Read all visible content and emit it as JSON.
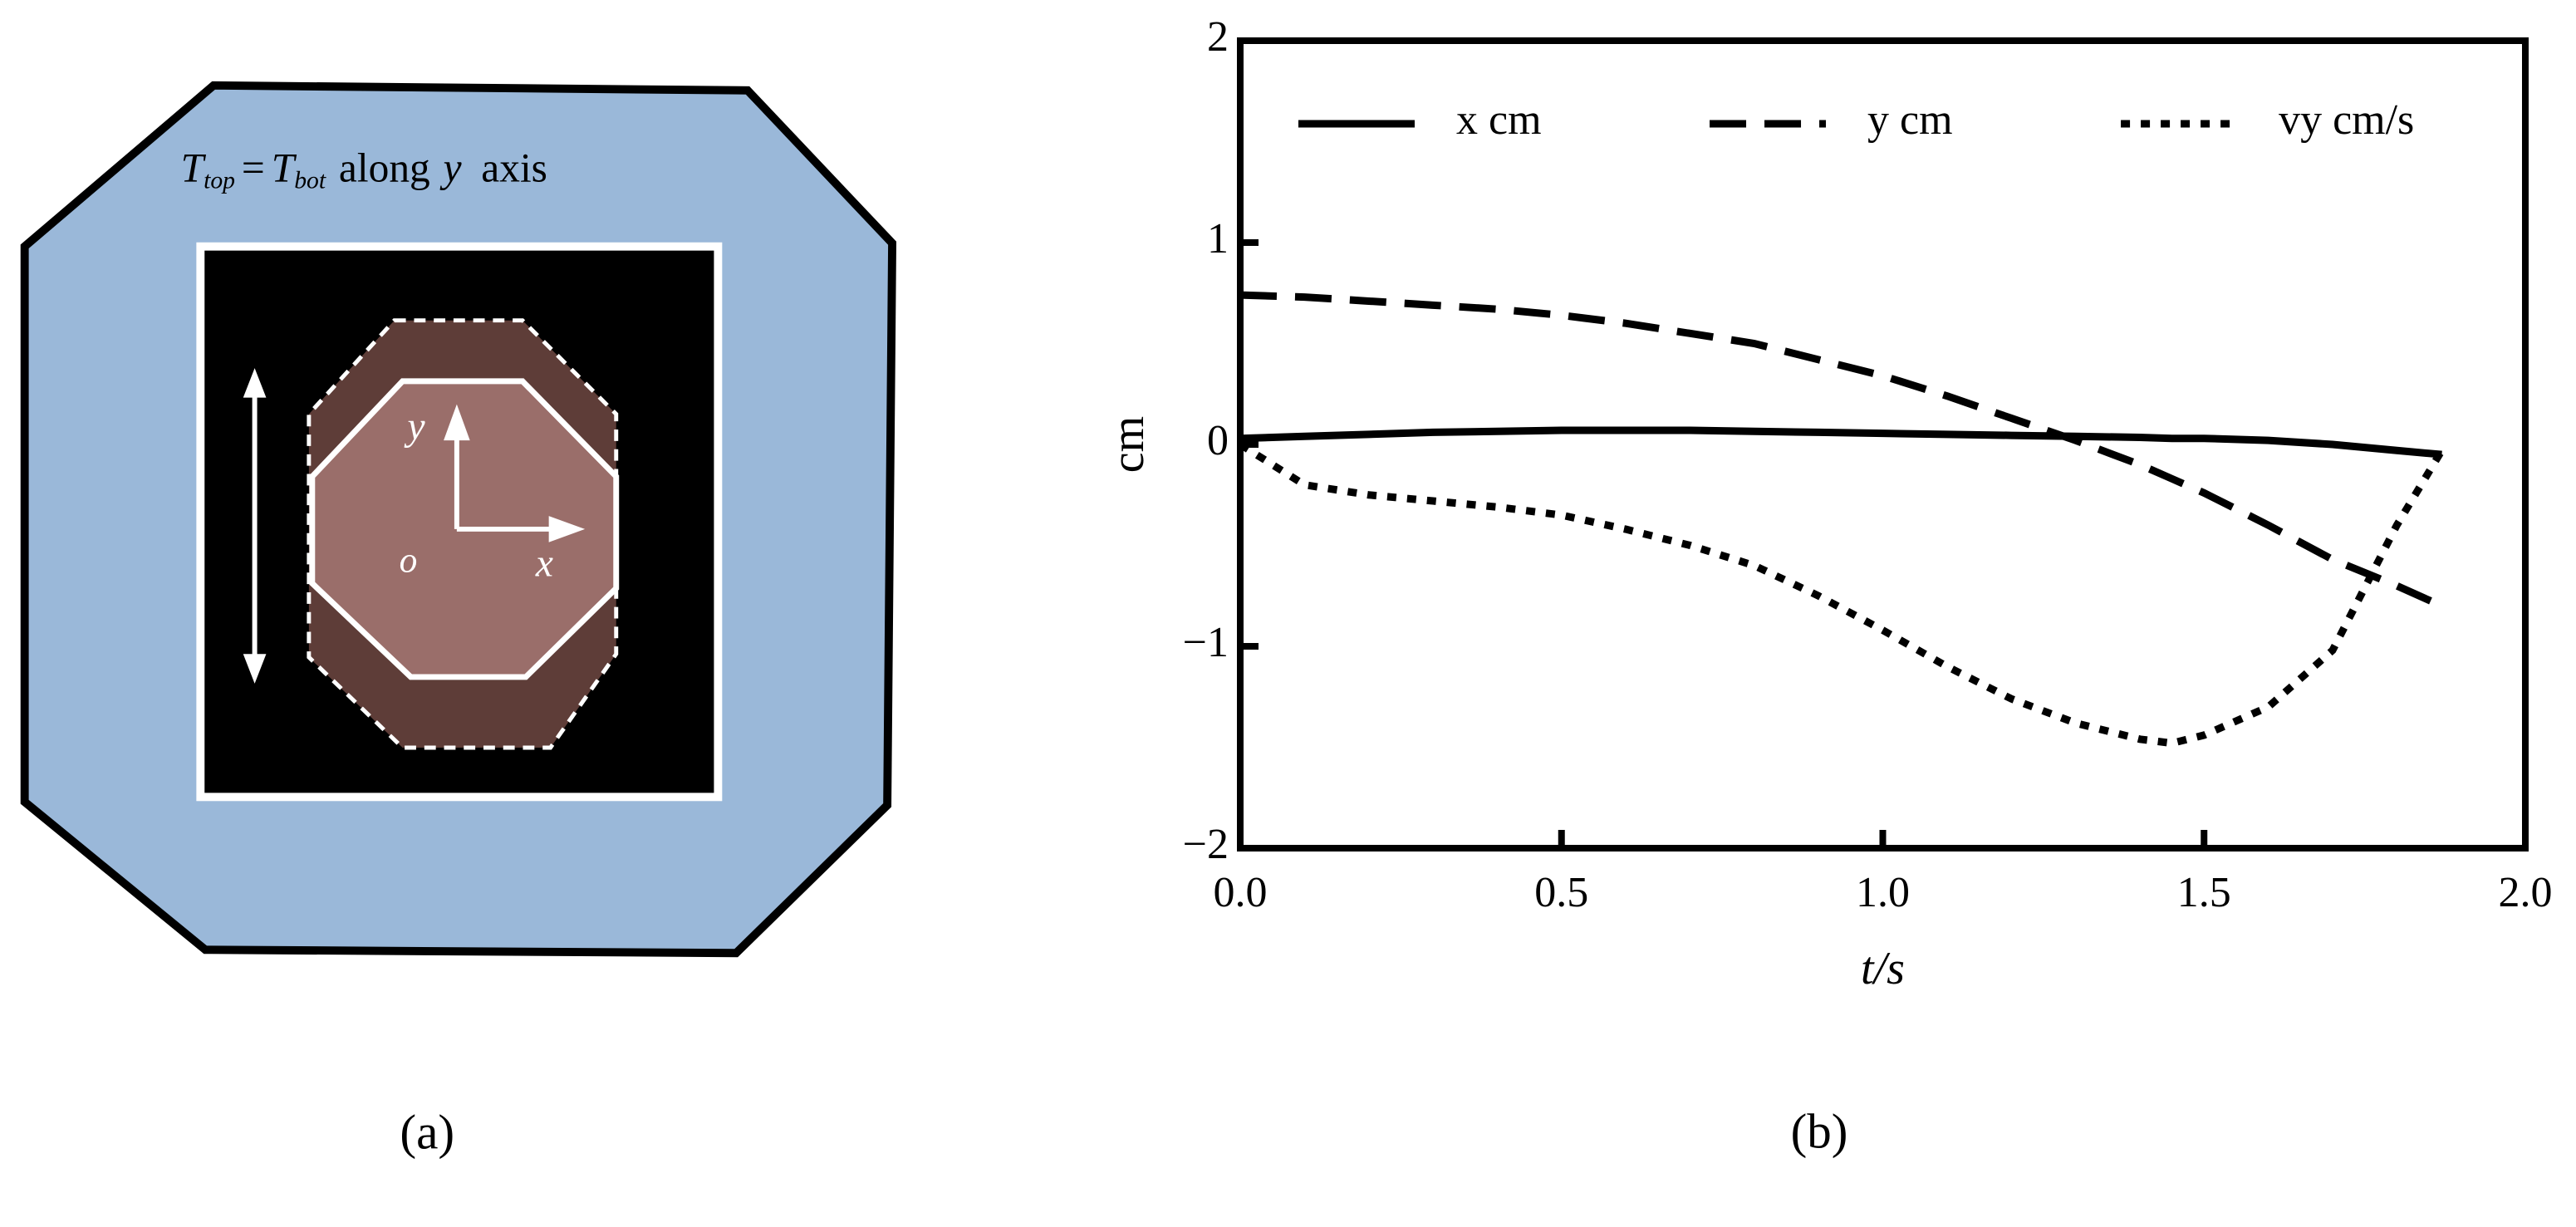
{
  "panel_a": {
    "annotation": [
      "T",
      "top",
      "=",
      "T",
      "bot",
      "along",
      "y",
      "axis"
    ],
    "axis_labels": [
      "y",
      "x",
      "o"
    ],
    "caption": "(a)"
  },
  "chart_data": {
    "type": "line",
    "caption": "(b)",
    "xlabel": "t/s",
    "ylabel": "cm",
    "x": [
      0,
      0.1,
      0.2,
      0.3,
      0.4,
      0.5,
      0.6,
      0.7,
      0.8,
      0.9,
      1.0,
      1.1,
      1.2,
      1.3,
      1.4,
      1.45,
      1.5,
      1.6,
      1.7,
      1.8,
      1.87
    ],
    "series": [
      {
        "name": "x cm",
        "color": "#000000",
        "style": "solid",
        "values": [
          0.03,
          0.04,
          0.05,
          0.06,
          0.065,
          0.07,
          0.07,
          0.07,
          0.065,
          0.06,
          0.055,
          0.05,
          0.045,
          0.04,
          0.035,
          0.03,
          0.03,
          0.02,
          0.0,
          -0.03,
          -0.05
        ]
      },
      {
        "name": "y cm",
        "color": "#000000",
        "style": "dashed",
        "values": [
          0.74,
          0.73,
          0.71,
          0.69,
          0.67,
          0.64,
          0.6,
          0.55,
          0.5,
          0.42,
          0.34,
          0.24,
          0.13,
          0.02,
          -0.1,
          -0.17,
          -0.24,
          -0.4,
          -0.57,
          -0.7,
          -0.8
        ]
      },
      {
        "name": "vy cm/s",
        "color": "#000000",
        "style": "dotted",
        "values": [
          0,
          -0.2,
          -0.25,
          -0.28,
          -0.31,
          -0.35,
          -0.42,
          -0.5,
          -0.6,
          -0.75,
          -0.92,
          -1.1,
          -1.26,
          -1.38,
          -1.46,
          -1.48,
          -1.44,
          -1.3,
          -1.02,
          -0.4,
          -0.03
        ]
      }
    ],
    "xlim": [
      0,
      2
    ],
    "xticks": [
      {
        "value": 0,
        "label": "0.0"
      },
      {
        "value": 0.5,
        "label": "0.5"
      },
      {
        "value": 1,
        "label": "1.0"
      },
      {
        "value": 1.5,
        "label": "1.5"
      },
      {
        "value": 2,
        "label": "2.0"
      }
    ],
    "ylim": [
      -2,
      2
    ],
    "yticks": [
      {
        "value": -2,
        "label": "−2"
      },
      {
        "value": -1,
        "label": "−1"
      },
      0,
      1,
      2
    ],
    "legend": "top",
    "grid": false
  }
}
